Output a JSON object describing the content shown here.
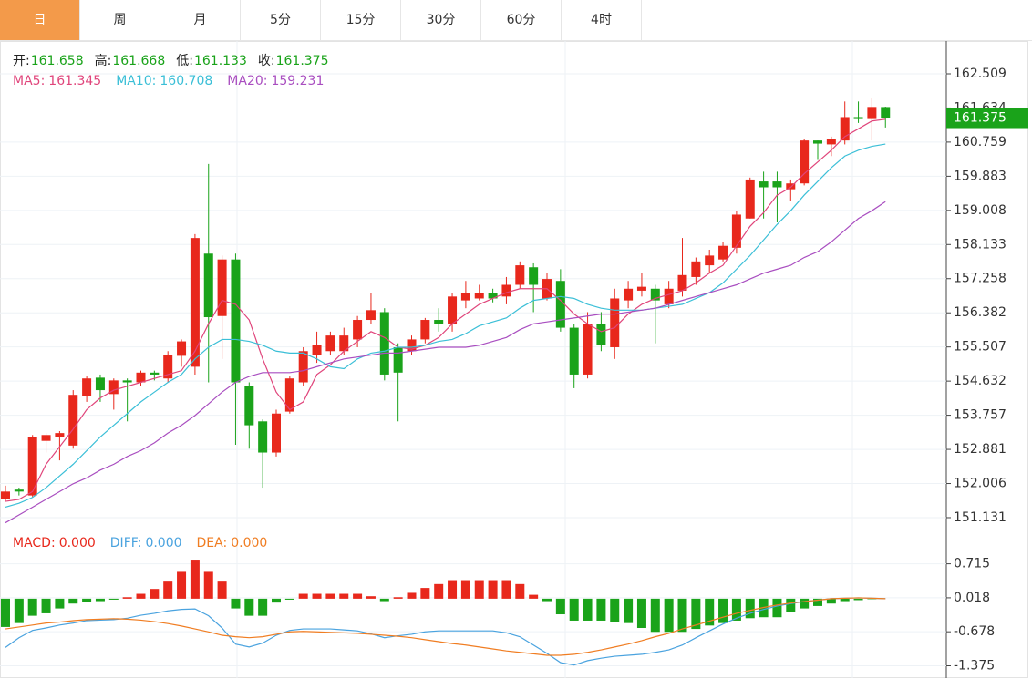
{
  "tabs": [
    {
      "label": "日",
      "active": true
    },
    {
      "label": "周",
      "active": false
    },
    {
      "label": "月",
      "active": false
    },
    {
      "label": "5分",
      "active": false
    },
    {
      "label": "15分",
      "active": false
    },
    {
      "label": "30分",
      "active": false
    },
    {
      "label": "60分",
      "active": false
    },
    {
      "label": "4时",
      "active": false
    }
  ],
  "chart_data": [
    {
      "type": "candlestick",
      "ohlc_header": [
        {
          "label": "开:",
          "value": "161.658"
        },
        {
          "label": "高:",
          "value": "161.668"
        },
        {
          "label": "低:",
          "value": "161.133"
        },
        {
          "label": "收:",
          "value": "161.375"
        }
      ],
      "up_color": "#e8281c",
      "down_color": "#1aa31a",
      "open": [
        151.6,
        151.85,
        151.7,
        153.1,
        153.2,
        152.98,
        154.25,
        154.72,
        154.3,
        154.65,
        154.6,
        154.85,
        154.7,
        155.28,
        155.0,
        157.9,
        156.3,
        157.75,
        154.5,
        153.6,
        152.8,
        153.85,
        154.6,
        155.3,
        155.4,
        155.4,
        155.7,
        156.2,
        156.4,
        155.5,
        155.4,
        155.7,
        156.2,
        156.1,
        156.7,
        156.75,
        156.9,
        156.8,
        157.1,
        157.55,
        156.75,
        157.2,
        156.0,
        154.8,
        156.1,
        155.5,
        156.7,
        156.95,
        157.0,
        156.6,
        156.95,
        157.3,
        157.6,
        157.75,
        158.05,
        158.8,
        159.75,
        159.75,
        159.55,
        159.7,
        160.8,
        160.7,
        160.8,
        161.4,
        161.35,
        161.658
      ],
      "high": [
        151.95,
        151.9,
        153.25,
        153.3,
        153.35,
        154.4,
        154.75,
        154.8,
        154.7,
        154.7,
        154.9,
        154.9,
        155.4,
        155.7,
        158.4,
        160.2,
        157.85,
        157.9,
        154.6,
        153.65,
        153.9,
        154.75,
        155.5,
        155.9,
        155.9,
        156.0,
        156.3,
        156.9,
        156.5,
        155.6,
        155.8,
        156.25,
        156.5,
        156.9,
        157.2,
        157.1,
        157.0,
        157.3,
        157.7,
        157.65,
        157.4,
        157.5,
        156.1,
        156.4,
        156.4,
        157.0,
        157.2,
        157.4,
        157.1,
        157.2,
        158.3,
        157.8,
        158.0,
        158.2,
        159.0,
        159.85,
        160.0,
        160.0,
        159.8,
        160.85,
        160.8,
        160.9,
        161.8,
        161.8,
        161.9,
        161.668
      ],
      "low": [
        151.55,
        151.7,
        151.65,
        152.8,
        152.6,
        152.9,
        154.1,
        154.1,
        153.9,
        153.6,
        154.5,
        154.65,
        154.6,
        155.0,
        154.8,
        154.6,
        155.2,
        153.0,
        152.9,
        151.9,
        152.7,
        153.8,
        154.5,
        155.1,
        155.3,
        155.3,
        155.5,
        156.1,
        154.65,
        153.6,
        155.3,
        155.6,
        155.9,
        155.9,
        156.5,
        156.7,
        156.65,
        156.6,
        157.0,
        156.4,
        156.7,
        155.9,
        154.45,
        154.7,
        155.4,
        155.2,
        156.5,
        156.8,
        155.6,
        156.5,
        156.8,
        157.1,
        157.4,
        157.7,
        157.9,
        158.8,
        158.8,
        158.7,
        159.25,
        159.65,
        160.3,
        160.4,
        160.7,
        161.25,
        160.8,
        161.133
      ],
      "close": [
        151.8,
        151.8,
        153.2,
        153.25,
        153.3,
        154.28,
        154.7,
        154.4,
        154.65,
        154.6,
        154.85,
        154.8,
        155.3,
        155.65,
        158.3,
        156.27,
        157.75,
        154.6,
        153.5,
        152.8,
        153.8,
        154.7,
        155.4,
        155.55,
        155.8,
        155.8,
        156.2,
        156.45,
        154.8,
        154.85,
        155.7,
        156.2,
        156.1,
        156.8,
        156.9,
        156.9,
        156.75,
        157.1,
        157.6,
        157.1,
        157.25,
        156.0,
        154.8,
        156.1,
        155.55,
        156.75,
        157.0,
        157.05,
        156.7,
        157.0,
        157.35,
        157.7,
        157.85,
        158.1,
        158.9,
        159.8,
        159.6,
        159.6,
        159.7,
        160.8,
        160.72,
        160.85,
        161.4,
        161.35,
        161.66,
        161.375
      ],
      "series": [
        {
          "name": "MA5:",
          "last_label": "161.345",
          "color": "#e0457b",
          "values": [
            151.55,
            151.6,
            151.8,
            152.5,
            152.95,
            153.4,
            153.9,
            154.2,
            154.4,
            154.5,
            154.6,
            154.7,
            154.8,
            154.9,
            155.4,
            156.1,
            156.7,
            156.6,
            156.2,
            155.2,
            154.35,
            153.9,
            154.1,
            154.8,
            155.05,
            155.4,
            155.65,
            155.9,
            155.75,
            155.5,
            155.45,
            155.55,
            155.75,
            156.1,
            156.35,
            156.6,
            156.75,
            156.9,
            157.0,
            157.0,
            157.0,
            156.7,
            156.35,
            156.1,
            155.9,
            156.0,
            156.35,
            156.6,
            156.75,
            156.85,
            156.95,
            157.15,
            157.4,
            157.6,
            158.1,
            158.6,
            158.95,
            159.4,
            159.6,
            159.95,
            160.25,
            160.55,
            160.9,
            161.1,
            161.3,
            161.345
          ]
        },
        {
          "name": "MA10:",
          "last_label": "160.708",
          "color": "#3bbfd7",
          "values": [
            151.4,
            151.5,
            151.65,
            151.9,
            152.2,
            152.5,
            152.85,
            153.2,
            153.5,
            153.8,
            154.1,
            154.35,
            154.6,
            154.8,
            155.2,
            155.5,
            155.7,
            155.7,
            155.65,
            155.55,
            155.4,
            155.35,
            155.35,
            155.2,
            155.0,
            154.95,
            155.2,
            155.35,
            155.4,
            155.5,
            155.5,
            155.55,
            155.65,
            155.7,
            155.85,
            156.05,
            156.15,
            156.25,
            156.5,
            156.7,
            156.75,
            156.8,
            156.75,
            156.6,
            156.5,
            156.45,
            156.45,
            156.45,
            156.5,
            156.55,
            156.6,
            156.75,
            156.9,
            157.15,
            157.5,
            157.85,
            158.25,
            158.65,
            159.0,
            159.4,
            159.75,
            160.1,
            160.4,
            160.55,
            160.65,
            160.708
          ]
        },
        {
          "name": "MA20:",
          "last_label": "159.231",
          "color": "#a94ec0",
          "values": [
            151.0,
            151.2,
            151.4,
            151.6,
            151.8,
            152.0,
            152.15,
            152.35,
            152.5,
            152.7,
            152.85,
            153.05,
            153.3,
            153.5,
            153.75,
            154.05,
            154.35,
            154.6,
            154.75,
            154.85,
            154.85,
            154.85,
            154.9,
            155.0,
            155.1,
            155.2,
            155.25,
            155.3,
            155.35,
            155.35,
            155.4,
            155.45,
            155.5,
            155.5,
            155.5,
            155.55,
            155.65,
            155.75,
            155.95,
            156.1,
            156.15,
            156.2,
            156.25,
            156.3,
            156.35,
            156.35,
            156.4,
            156.45,
            156.5,
            156.6,
            156.7,
            156.8,
            156.9,
            157.0,
            157.1,
            157.25,
            157.4,
            157.5,
            157.6,
            157.8,
            157.95,
            158.2,
            158.5,
            158.8,
            159.0,
            159.231
          ]
        }
      ],
      "last_price": 161.375,
      "last_price_color": "#1aa31a",
      "ylim": [
        150.85,
        163.35
      ],
      "yticks": [
        151.131,
        152.006,
        152.881,
        153.757,
        154.632,
        155.507,
        156.382,
        157.258,
        158.133,
        159.008,
        159.883,
        160.759,
        161.634,
        162.509
      ],
      "grid": true
    },
    {
      "type": "macd",
      "up_color": "#e8281c",
      "down_color": "#1aa31a",
      "series": [
        {
          "name": "MACD:",
          "last_label": "0.000",
          "color": "#e8281c",
          "style": "bar",
          "values": [
            -0.58,
            -0.5,
            -0.35,
            -0.3,
            -0.2,
            -0.1,
            -0.06,
            -0.05,
            -0.02,
            0.03,
            0.1,
            0.2,
            0.35,
            0.55,
            0.8,
            0.55,
            0.35,
            -0.2,
            -0.35,
            -0.35,
            -0.08,
            -0.02,
            0.1,
            0.1,
            0.1,
            0.1,
            0.1,
            0.05,
            -0.05,
            0.03,
            0.12,
            0.22,
            0.3,
            0.38,
            0.38,
            0.38,
            0.38,
            0.38,
            0.3,
            0.08,
            -0.05,
            -0.32,
            -0.45,
            -0.45,
            -0.45,
            -0.48,
            -0.5,
            -0.6,
            -0.68,
            -0.68,
            -0.68,
            -0.62,
            -0.55,
            -0.5,
            -0.45,
            -0.4,
            -0.38,
            -0.38,
            -0.28,
            -0.2,
            -0.15,
            -0.1,
            -0.05,
            -0.03,
            -0.01,
            0.0
          ]
        },
        {
          "name": "DIFF:",
          "last_label": "0.000",
          "color": "#4aa3df",
          "style": "line",
          "values": [
            -1.0,
            -0.8,
            -0.65,
            -0.6,
            -0.54,
            -0.5,
            -0.45,
            -0.44,
            -0.43,
            -0.4,
            -0.34,
            -0.3,
            -0.25,
            -0.22,
            -0.21,
            -0.35,
            -0.6,
            -0.93,
            -0.99,
            -0.91,
            -0.75,
            -0.65,
            -0.62,
            -0.62,
            -0.62,
            -0.64,
            -0.66,
            -0.72,
            -0.8,
            -0.76,
            -0.73,
            -0.68,
            -0.66,
            -0.66,
            -0.66,
            -0.66,
            -0.66,
            -0.7,
            -0.78,
            -0.95,
            -1.12,
            -1.31,
            -1.36,
            -1.27,
            -1.22,
            -1.18,
            -1.16,
            -1.14,
            -1.1,
            -1.05,
            -0.95,
            -0.8,
            -0.66,
            -0.52,
            -0.4,
            -0.3,
            -0.22,
            -0.15,
            -0.1,
            -0.06,
            -0.03,
            0.0,
            0.01,
            0.018,
            0.01,
            0.0
          ]
        },
        {
          "name": "DEA:",
          "last_label": "0.000",
          "color": "#f07d22",
          "style": "line",
          "values": [
            -0.62,
            -0.58,
            -0.54,
            -0.5,
            -0.48,
            -0.45,
            -0.43,
            -0.42,
            -0.41,
            -0.42,
            -0.44,
            -0.47,
            -0.51,
            -0.56,
            -0.62,
            -0.68,
            -0.75,
            -0.78,
            -0.8,
            -0.78,
            -0.73,
            -0.68,
            -0.67,
            -0.68,
            -0.69,
            -0.7,
            -0.71,
            -0.73,
            -0.75,
            -0.77,
            -0.8,
            -0.84,
            -0.88,
            -0.92,
            -0.95,
            -0.99,
            -1.03,
            -1.07,
            -1.1,
            -1.13,
            -1.16,
            -1.16,
            -1.14,
            -1.1,
            -1.05,
            -0.99,
            -0.93,
            -0.86,
            -0.78,
            -0.71,
            -0.62,
            -0.54,
            -0.46,
            -0.38,
            -0.3,
            -0.24,
            -0.18,
            -0.13,
            -0.09,
            -0.06,
            -0.03,
            0.0,
            0.01,
            0.018,
            0.01,
            0.0
          ]
        }
      ],
      "ylim": [
        -1.59,
        1.38
      ],
      "yticks": [
        0.715,
        0.018,
        -0.678,
        -1.375
      ],
      "grid": true
    }
  ]
}
